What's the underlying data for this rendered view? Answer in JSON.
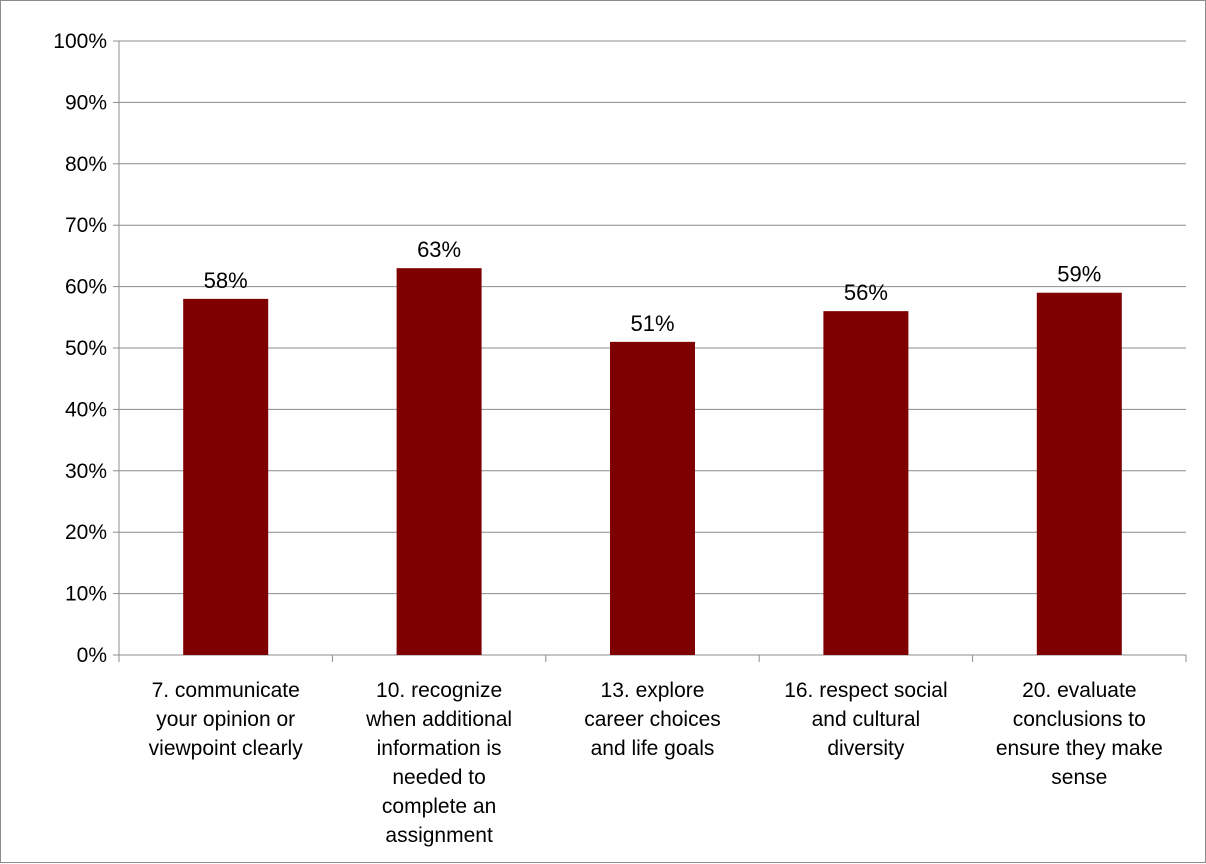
{
  "chart_data": {
    "type": "bar",
    "title": "",
    "xlabel": "",
    "ylabel": "",
    "ylim": [
      0,
      100
    ],
    "y_ticks": [
      "0%",
      "10%",
      "20%",
      "30%",
      "40%",
      "50%",
      "60%",
      "70%",
      "80%",
      "90%",
      "100%"
    ],
    "categories": [
      "7. communicate your opinion or viewpoint clearly",
      "10. recognize when additional information is needed to complete an assignment",
      "13. explore career choices and life goals",
      "16. respect social and cultural diversity",
      "20. evaluate conclusions to ensure they make sense"
    ],
    "category_lines": [
      [
        "7. communicate",
        "your opinion or",
        "viewpoint clearly"
      ],
      [
        "10. recognize",
        "when additional",
        "information is",
        "needed to",
        "complete an",
        "assignment"
      ],
      [
        "13. explore",
        "career choices",
        "and life goals"
      ],
      [
        "16. respect social",
        "and cultural",
        "diversity"
      ],
      [
        "20. evaluate",
        "conclusions to",
        "ensure they make",
        "sense"
      ]
    ],
    "values": [
      58,
      63,
      51,
      56,
      59
    ],
    "data_labels": [
      "58%",
      "63%",
      "51%",
      "56%",
      "59%"
    ],
    "bar_color": "#7f0000",
    "grid": true,
    "legend": "none"
  }
}
